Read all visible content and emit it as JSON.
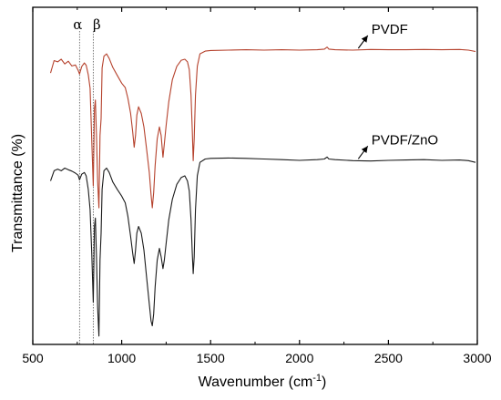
{
  "chart_data": {
    "type": "line",
    "title": "",
    "xlabel": "Wavenumber (cm",
    "xlabel_sup": "-1",
    "xlabel_end": ")",
    "ylabel": "Transmittance (%)",
    "xlim": [
      500,
      3000
    ],
    "ylim": [
      0,
      100
    ],
    "x_ticks": [
      500,
      1000,
      1500,
      2000,
      2500,
      3000
    ],
    "grid": false,
    "legend": "none",
    "markers": [
      {
        "label": "α",
        "x": 763
      },
      {
        "label": "β",
        "x": 840
      }
    ],
    "series": [
      {
        "name": "PVDF",
        "color": "#b5412c",
        "points": [
          [
            600,
            80.5
          ],
          [
            620,
            84.2
          ],
          [
            640,
            83.8
          ],
          [
            660,
            84.6
          ],
          [
            680,
            83.2
          ],
          [
            700,
            84.0
          ],
          [
            720,
            82.6
          ],
          [
            740,
            82.9
          ],
          [
            755,
            81.3
          ],
          [
            763,
            80.2
          ],
          [
            775,
            82.4
          ],
          [
            790,
            83.5
          ],
          [
            800,
            82.8
          ],
          [
            812,
            80.0
          ],
          [
            822,
            76.0
          ],
          [
            832,
            60.0
          ],
          [
            840,
            47.0
          ],
          [
            847,
            70.0
          ],
          [
            852,
            72.5
          ],
          [
            858,
            62.0
          ],
          [
            865,
            48.5
          ],
          [
            872,
            40.5
          ],
          [
            878,
            62.0
          ],
          [
            884,
            67.0
          ],
          [
            890,
            82.0
          ],
          [
            900,
            85.5
          ],
          [
            915,
            86.2
          ],
          [
            930,
            84.8
          ],
          [
            950,
            82.2
          ],
          [
            975,
            79.8
          ],
          [
            1000,
            77.5
          ],
          [
            1020,
            76.2
          ],
          [
            1035,
            73.0
          ],
          [
            1050,
            68.5
          ],
          [
            1062,
            63.0
          ],
          [
            1070,
            58.5
          ],
          [
            1078,
            62.0
          ],
          [
            1085,
            68.0
          ],
          [
            1095,
            70.5
          ],
          [
            1110,
            68.5
          ],
          [
            1125,
            64.5
          ],
          [
            1140,
            58.0
          ],
          [
            1155,
            51.0
          ],
          [
            1165,
            44.5
          ],
          [
            1172,
            40.5
          ],
          [
            1180,
            45.0
          ],
          [
            1188,
            53.0
          ],
          [
            1200,
            61.0
          ],
          [
            1212,
            64.5
          ],
          [
            1222,
            62.0
          ],
          [
            1232,
            55.5
          ],
          [
            1240,
            59.5
          ],
          [
            1250,
            65.0
          ],
          [
            1265,
            72.0
          ],
          [
            1285,
            78.5
          ],
          [
            1310,
            82.5
          ],
          [
            1335,
            84.3
          ],
          [
            1355,
            84.6
          ],
          [
            1370,
            83.8
          ],
          [
            1380,
            81.5
          ],
          [
            1390,
            74.0
          ],
          [
            1397,
            63.5
          ],
          [
            1402,
            54.5
          ],
          [
            1408,
            61.0
          ],
          [
            1415,
            74.0
          ],
          [
            1425,
            82.5
          ],
          [
            1440,
            86.2
          ],
          [
            1470,
            87.0
          ],
          [
            1500,
            87.2
          ],
          [
            1600,
            87.3
          ],
          [
            1700,
            87.4
          ],
          [
            1800,
            87.3
          ],
          [
            1900,
            87.4
          ],
          [
            2000,
            87.3
          ],
          [
            2100,
            87.4
          ],
          [
            2140,
            87.6
          ],
          [
            2155,
            88.2
          ],
          [
            2165,
            87.6
          ],
          [
            2200,
            87.4
          ],
          [
            2300,
            87.3
          ],
          [
            2400,
            87.5
          ],
          [
            2500,
            87.4
          ],
          [
            2600,
            87.4
          ],
          [
            2700,
            87.5
          ],
          [
            2800,
            87.4
          ],
          [
            2900,
            87.5
          ],
          [
            2950,
            87.3
          ],
          [
            2990,
            86.9
          ]
        ]
      },
      {
        "name": "PVDF/ZnO",
        "color": "#1a1a1a",
        "points": [
          [
            600,
            48.5
          ],
          [
            620,
            51.5
          ],
          [
            640,
            52.0
          ],
          [
            660,
            51.5
          ],
          [
            680,
            52.3
          ],
          [
            700,
            51.8
          ],
          [
            720,
            51.4
          ],
          [
            740,
            50.8
          ],
          [
            755,
            50.2
          ],
          [
            763,
            48.8
          ],
          [
            775,
            50.5
          ],
          [
            790,
            51.0
          ],
          [
            800,
            50.0
          ],
          [
            812,
            46.0
          ],
          [
            822,
            40.0
          ],
          [
            832,
            26.5
          ],
          [
            840,
            12.5
          ],
          [
            847,
            35.0
          ],
          [
            852,
            37.5
          ],
          [
            858,
            26.0
          ],
          [
            865,
            11.0
          ],
          [
            872,
            2.5
          ],
          [
            878,
            25.0
          ],
          [
            884,
            33.0
          ],
          [
            890,
            46.0
          ],
          [
            900,
            51.5
          ],
          [
            915,
            52.3
          ],
          [
            930,
            51.0
          ],
          [
            950,
            48.2
          ],
          [
            975,
            46.0
          ],
          [
            1000,
            44.0
          ],
          [
            1020,
            42.0
          ],
          [
            1035,
            38.0
          ],
          [
            1050,
            32.0
          ],
          [
            1062,
            27.0
          ],
          [
            1070,
            24.0
          ],
          [
            1078,
            28.0
          ],
          [
            1085,
            33.0
          ],
          [
            1095,
            35.0
          ],
          [
            1110,
            33.0
          ],
          [
            1125,
            28.0
          ],
          [
            1140,
            20.0
          ],
          [
            1155,
            12.0
          ],
          [
            1165,
            7.0
          ],
          [
            1172,
            5.5
          ],
          [
            1180,
            9.0
          ],
          [
            1188,
            17.0
          ],
          [
            1200,
            25.0
          ],
          [
            1212,
            28.5
          ],
          [
            1222,
            26.0
          ],
          [
            1232,
            22.5
          ],
          [
            1240,
            25.0
          ],
          [
            1250,
            30.0
          ],
          [
            1265,
            37.0
          ],
          [
            1285,
            43.0
          ],
          [
            1310,
            47.5
          ],
          [
            1335,
            49.5
          ],
          [
            1355,
            50.0
          ],
          [
            1370,
            48.5
          ],
          [
            1380,
            45.5
          ],
          [
            1390,
            37.0
          ],
          [
            1397,
            27.0
          ],
          [
            1402,
            21.0
          ],
          [
            1408,
            26.0
          ],
          [
            1415,
            40.0
          ],
          [
            1425,
            50.0
          ],
          [
            1440,
            54.0
          ],
          [
            1470,
            55.0
          ],
          [
            1500,
            55.2
          ],
          [
            1600,
            55.3
          ],
          [
            1700,
            55.2
          ],
          [
            1800,
            55.0
          ],
          [
            1900,
            54.8
          ],
          [
            2000,
            54.6
          ],
          [
            2100,
            54.8
          ],
          [
            2140,
            55.0
          ],
          [
            2155,
            55.6
          ],
          [
            2165,
            55.0
          ],
          [
            2200,
            54.8
          ],
          [
            2300,
            54.5
          ],
          [
            2400,
            54.4
          ],
          [
            2500,
            54.6
          ],
          [
            2600,
            54.7
          ],
          [
            2700,
            54.8
          ],
          [
            2800,
            54.6
          ],
          [
            2900,
            54.7
          ],
          [
            2950,
            54.5
          ],
          [
            2990,
            54.0
          ]
        ]
      }
    ],
    "annotations": [
      {
        "text": "PVDF",
        "series": 0,
        "arrow_from_x": 2300,
        "text_x": 2425
      },
      {
        "text": "PVDF/ZnO",
        "series": 1,
        "arrow_from_x": 2300,
        "text_x": 2425
      }
    ]
  }
}
